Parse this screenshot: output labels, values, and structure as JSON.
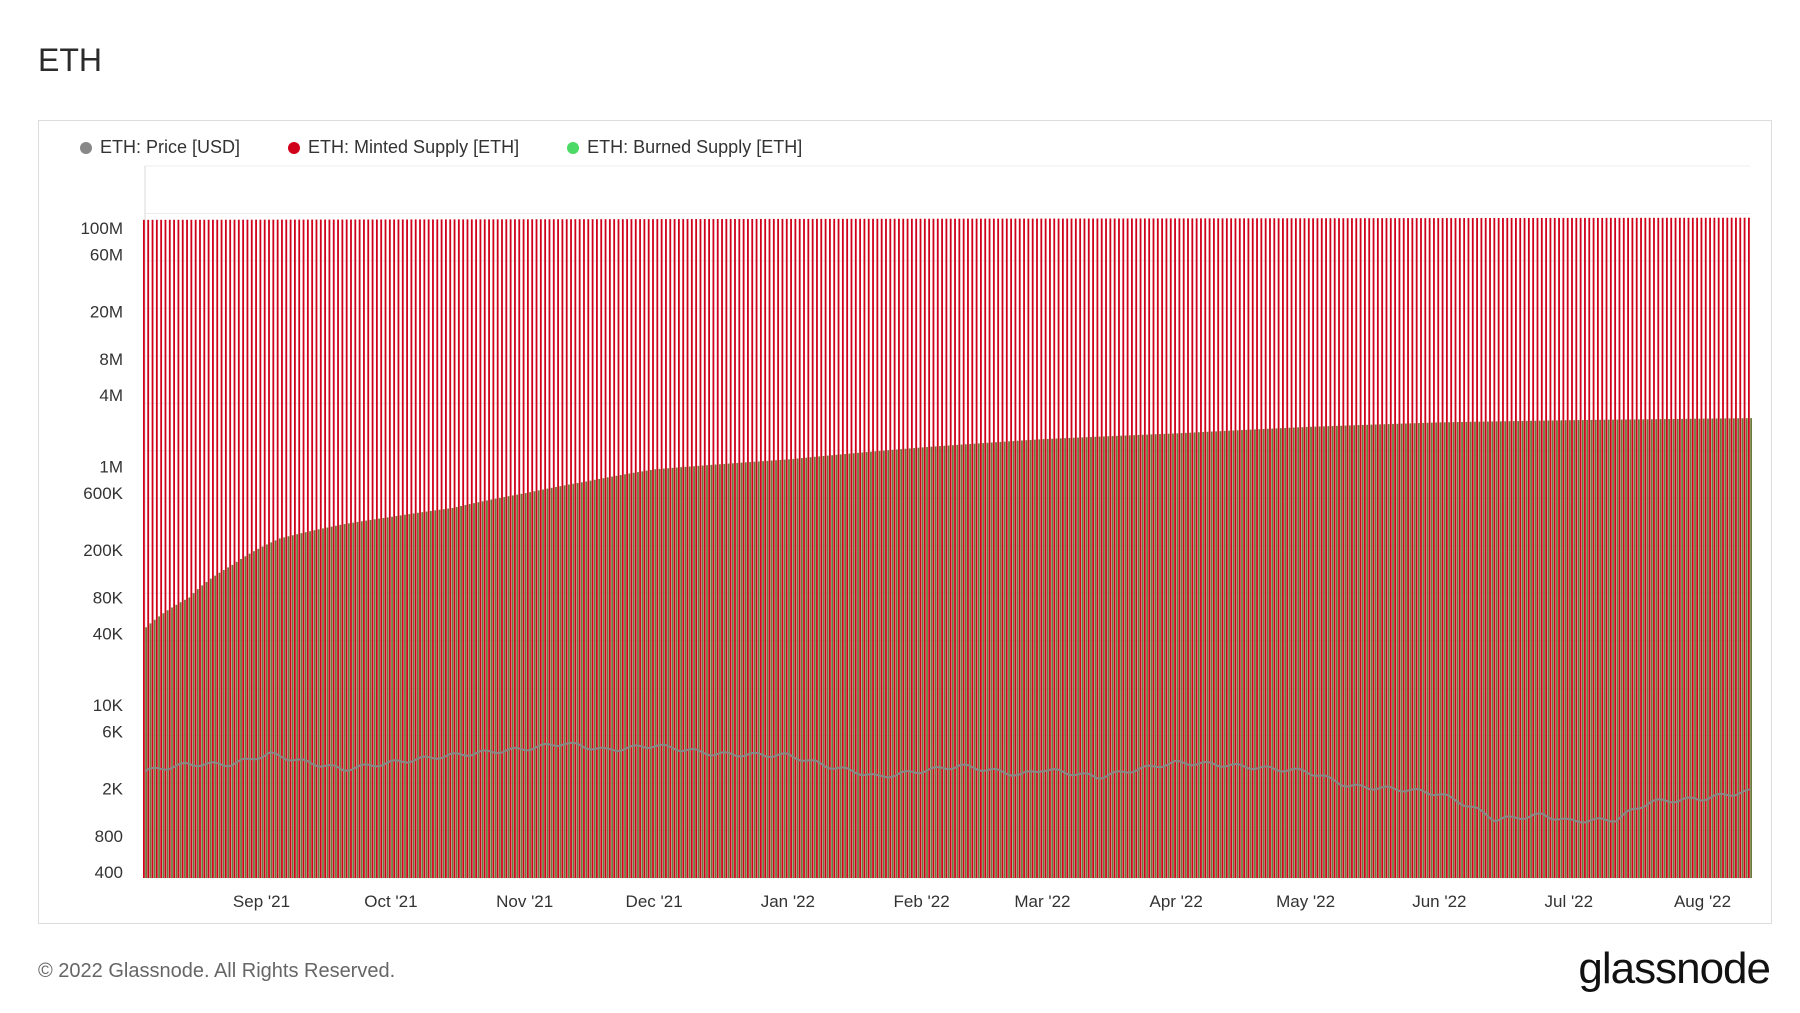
{
  "header": {
    "title": "ETH"
  },
  "footer": {
    "copyright": "© 2022 Glassnode. All Rights Reserved.",
    "brand": "glassnode"
  },
  "colors": {
    "price": "#888888",
    "minted": "#d0021b",
    "burned": "#4cd964",
    "grid": "#ececec"
  },
  "chart_data": {
    "type": "bar",
    "yscale": "log",
    "ylim": [
      400,
      100000000
    ],
    "y_ticks": [
      {
        "value": 100000000,
        "label": "100M"
      },
      {
        "value": 60000000,
        "label": "60M"
      },
      {
        "value": 20000000,
        "label": "20M"
      },
      {
        "value": 8000000,
        "label": "8M"
      },
      {
        "value": 4000000,
        "label": "4M"
      },
      {
        "value": 1000000,
        "label": "1M"
      },
      {
        "value": 600000,
        "label": "600K"
      },
      {
        "value": 200000,
        "label": "200K"
      },
      {
        "value": 80000,
        "label": "80K"
      },
      {
        "value": 40000,
        "label": "40K"
      },
      {
        "value": 10000,
        "label": "10K"
      },
      {
        "value": 6000,
        "label": "6K"
      },
      {
        "value": 2000,
        "label": "2K"
      },
      {
        "value": 800,
        "label": "800"
      },
      {
        "value": 400,
        "label": "400"
      }
    ],
    "xlim": [
      "2021-08-05",
      "2022-08-12"
    ],
    "x_ticks": [
      {
        "date": "2021-09-01",
        "label": "Sep '21"
      },
      {
        "date": "2021-10-01",
        "label": "Oct '21"
      },
      {
        "date": "2021-11-01",
        "label": "Nov '21"
      },
      {
        "date": "2021-12-01",
        "label": "Dec '21"
      },
      {
        "date": "2022-01-01",
        "label": "Jan '22"
      },
      {
        "date": "2022-02-01",
        "label": "Feb '22"
      },
      {
        "date": "2022-03-01",
        "label": "Mar '22"
      },
      {
        "date": "2022-04-01",
        "label": "Apr '22"
      },
      {
        "date": "2022-05-01",
        "label": "May '22"
      },
      {
        "date": "2022-06-01",
        "label": "Jun '22"
      },
      {
        "date": "2022-07-01",
        "label": "Jul '22"
      },
      {
        "date": "2022-08-01",
        "label": "Aug '22"
      }
    ],
    "legend": [
      {
        "name": "ETH: Price [USD]",
        "color": "#888888"
      },
      {
        "name": "ETH: Minted Supply [ETH]",
        "color": "#d0021b"
      },
      {
        "name": "ETH: Burned Supply [ETH]",
        "color": "#4cd964"
      }
    ],
    "series": [
      {
        "name": "ETH: Minted Supply [ETH]",
        "points": [
          [
            "2021-08-05",
            117100000
          ],
          [
            "2022-01-01",
            119200000
          ],
          [
            "2022-08-12",
            122000000
          ]
        ]
      },
      {
        "name": "ETH: Burned Supply [ETH]",
        "points": [
          [
            "2021-08-05",
            45000
          ],
          [
            "2021-08-15",
            80000
          ],
          [
            "2021-08-25",
            150000
          ],
          [
            "2021-09-05",
            250000
          ],
          [
            "2021-09-20",
            330000
          ],
          [
            "2021-10-01",
            380000
          ],
          [
            "2021-10-15",
            450000
          ],
          [
            "2021-11-01",
            600000
          ],
          [
            "2021-11-15",
            750000
          ],
          [
            "2021-12-01",
            950000
          ],
          [
            "2022-01-01",
            1150000
          ],
          [
            "2022-02-01",
            1450000
          ],
          [
            "2022-03-01",
            1700000
          ],
          [
            "2022-04-01",
            1900000
          ],
          [
            "2022-05-01",
            2150000
          ],
          [
            "2022-06-01",
            2350000
          ],
          [
            "2022-07-01",
            2450000
          ],
          [
            "2022-08-12",
            2550000
          ]
        ]
      },
      {
        "name": "ETH: Price [USD]",
        "points": [
          [
            "2021-08-05",
            2800
          ],
          [
            "2021-08-15",
            3200
          ],
          [
            "2021-08-25",
            3200
          ],
          [
            "2021-09-03",
            3900
          ],
          [
            "2021-09-10",
            3400
          ],
          [
            "2021-09-20",
            2900
          ],
          [
            "2021-10-01",
            3300
          ],
          [
            "2021-10-15",
            3800
          ],
          [
            "2021-11-01",
            4300
          ],
          [
            "2021-11-10",
            4800
          ],
          [
            "2021-11-20",
            4200
          ],
          [
            "2021-12-01",
            4600
          ],
          [
            "2021-12-15",
            3900
          ],
          [
            "2022-01-01",
            3800
          ],
          [
            "2022-01-10",
            3100
          ],
          [
            "2022-01-22",
            2500
          ],
          [
            "2022-02-10",
            3100
          ],
          [
            "2022-02-24",
            2600
          ],
          [
            "2022-03-01",
            2900
          ],
          [
            "2022-03-14",
            2500
          ],
          [
            "2022-04-01",
            3300
          ],
          [
            "2022-04-10",
            3200
          ],
          [
            "2022-04-25",
            2900
          ],
          [
            "2022-05-01",
            2800
          ],
          [
            "2022-05-11",
            2100
          ],
          [
            "2022-05-25",
            1950
          ],
          [
            "2022-06-01",
            1800
          ],
          [
            "2022-06-14",
            1100
          ],
          [
            "2022-06-25",
            1200
          ],
          [
            "2022-07-01",
            1070
          ],
          [
            "2022-07-12",
            1100
          ],
          [
            "2022-07-20",
            1550
          ],
          [
            "2022-08-01",
            1650
          ],
          [
            "2022-08-12",
            1900
          ]
        ]
      }
    ]
  }
}
